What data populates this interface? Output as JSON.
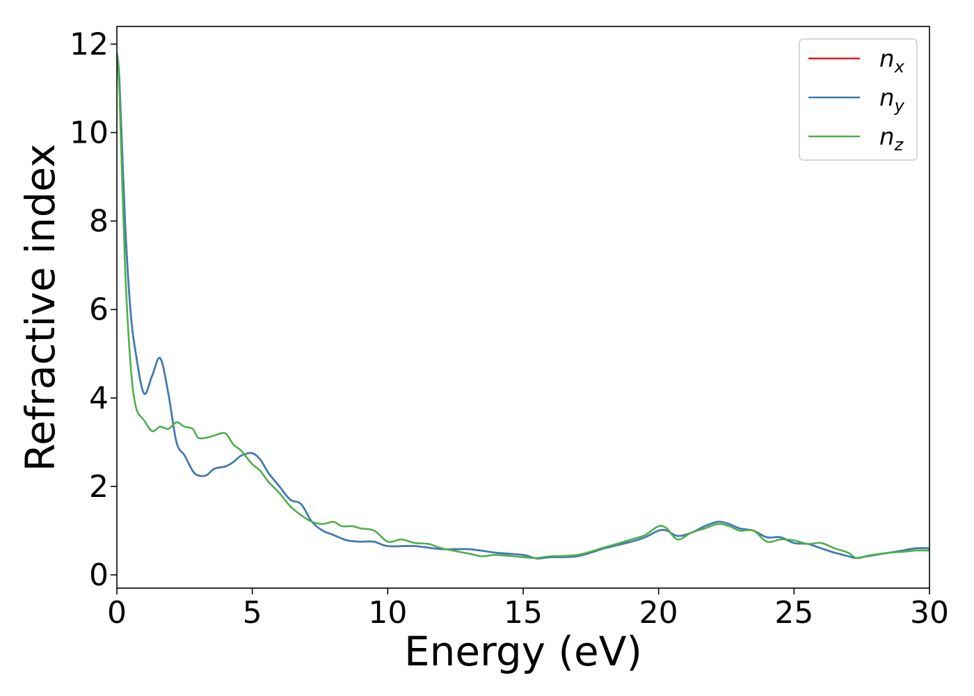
{
  "chart_data": {
    "type": "line",
    "title": "",
    "xlabel": "Energy (eV)",
    "ylabel": "Refractive index",
    "xlim": [
      0,
      30
    ],
    "ylim": [
      -0.3,
      12.4
    ],
    "xticks": [
      0,
      5,
      10,
      15,
      20,
      25,
      30
    ],
    "yticks": [
      0,
      2,
      4,
      6,
      8,
      10,
      12
    ],
    "xtick_labels": [
      "0",
      "5",
      "10",
      "15",
      "20",
      "25",
      "30"
    ],
    "ytick_labels": [
      "0",
      "2",
      "4",
      "6",
      "8",
      "10",
      "12"
    ],
    "grid": false,
    "legend_position": "top-right",
    "series": [
      {
        "name": "n",
        "subscript": "x",
        "color": "#e41a1c",
        "x": [
          0,
          0.1,
          0.3,
          0.5,
          0.7,
          1.0,
          1.3,
          1.6,
          1.9,
          2.2,
          2.5,
          2.8,
          3.0,
          3.3,
          3.6,
          4.0,
          4.3,
          4.6,
          5.0,
          5.3,
          5.6,
          6.0,
          6.4,
          6.8,
          7.2,
          7.6,
          8.0,
          8.5,
          9.0,
          9.5,
          10.0,
          11.0,
          12.0,
          13.0,
          14.0,
          15.0,
          15.5,
          16.0,
          17.0,
          18.0,
          19.0,
          19.5,
          20.0,
          20.3,
          20.7,
          21.2,
          21.7,
          22.2,
          22.6,
          23.0,
          23.5,
          24.0,
          24.5,
          25.0,
          25.5,
          26.0,
          26.5,
          27.0,
          27.3,
          27.7,
          28.0,
          28.5,
          29.0,
          29.5,
          30.0
        ],
        "y": [
          11.8,
          11.1,
          8.0,
          6.0,
          5.0,
          4.1,
          4.5,
          4.9,
          4.1,
          3.0,
          2.7,
          2.35,
          2.25,
          2.25,
          2.4,
          2.45,
          2.55,
          2.7,
          2.75,
          2.6,
          2.3,
          2.0,
          1.7,
          1.6,
          1.2,
          1.0,
          0.9,
          0.78,
          0.75,
          0.75,
          0.65,
          0.65,
          0.58,
          0.58,
          0.5,
          0.45,
          0.37,
          0.4,
          0.42,
          0.6,
          0.75,
          0.85,
          1.0,
          1.0,
          0.88,
          0.95,
          1.1,
          1.2,
          1.15,
          1.05,
          1.0,
          0.85,
          0.85,
          0.72,
          0.7,
          0.6,
          0.5,
          0.42,
          0.38,
          0.42,
          0.45,
          0.5,
          0.55,
          0.6,
          0.6
        ]
      },
      {
        "name": "n",
        "subscript": "y",
        "color": "#377eb8",
        "x": [
          0,
          0.1,
          0.3,
          0.5,
          0.7,
          1.0,
          1.3,
          1.6,
          1.9,
          2.2,
          2.5,
          2.8,
          3.0,
          3.3,
          3.6,
          4.0,
          4.3,
          4.6,
          5.0,
          5.3,
          5.6,
          6.0,
          6.4,
          6.8,
          7.2,
          7.6,
          8.0,
          8.5,
          9.0,
          9.5,
          10.0,
          11.0,
          12.0,
          13.0,
          14.0,
          15.0,
          15.5,
          16.0,
          17.0,
          18.0,
          19.0,
          19.5,
          20.0,
          20.3,
          20.7,
          21.2,
          21.7,
          22.2,
          22.6,
          23.0,
          23.5,
          24.0,
          24.5,
          25.0,
          25.5,
          26.0,
          26.5,
          27.0,
          27.3,
          27.7,
          28.0,
          28.5,
          29.0,
          29.5,
          30.0
        ],
        "y": [
          11.8,
          11.1,
          8.0,
          6.0,
          5.0,
          4.1,
          4.5,
          4.9,
          4.1,
          3.0,
          2.7,
          2.35,
          2.25,
          2.25,
          2.4,
          2.45,
          2.55,
          2.7,
          2.75,
          2.6,
          2.3,
          2.0,
          1.7,
          1.6,
          1.2,
          1.0,
          0.9,
          0.78,
          0.75,
          0.75,
          0.65,
          0.65,
          0.58,
          0.58,
          0.5,
          0.45,
          0.37,
          0.4,
          0.42,
          0.6,
          0.75,
          0.85,
          1.0,
          1.0,
          0.88,
          0.95,
          1.1,
          1.2,
          1.15,
          1.05,
          1.0,
          0.85,
          0.85,
          0.72,
          0.7,
          0.6,
          0.5,
          0.42,
          0.38,
          0.42,
          0.45,
          0.5,
          0.55,
          0.6,
          0.6
        ]
      },
      {
        "name": "n",
        "subscript": "z",
        "color": "#4daf4a",
        "x": [
          0,
          0.1,
          0.3,
          0.5,
          0.7,
          1.0,
          1.3,
          1.6,
          1.9,
          2.2,
          2.5,
          2.8,
          3.0,
          3.3,
          3.6,
          4.0,
          4.3,
          4.6,
          5.0,
          5.3,
          5.6,
          6.0,
          6.4,
          6.8,
          7.2,
          7.6,
          8.0,
          8.3,
          8.7,
          9.0,
          9.5,
          10.0,
          10.5,
          11.0,
          11.5,
          12.0,
          13.0,
          13.5,
          14.0,
          15.0,
          15.5,
          16.0,
          17.0,
          18.0,
          19.0,
          19.5,
          20.0,
          20.3,
          20.7,
          21.2,
          21.7,
          22.2,
          22.6,
          23.0,
          23.5,
          24.0,
          24.5,
          25.0,
          25.5,
          26.0,
          26.5,
          27.0,
          27.3,
          27.7,
          28.0,
          28.5,
          29.0,
          29.5,
          30.0
        ],
        "y": [
          11.8,
          10.8,
          7.0,
          4.8,
          3.8,
          3.5,
          3.25,
          3.35,
          3.3,
          3.45,
          3.35,
          3.3,
          3.1,
          3.1,
          3.15,
          3.2,
          2.95,
          2.8,
          2.5,
          2.35,
          2.1,
          1.85,
          1.55,
          1.35,
          1.2,
          1.15,
          1.2,
          1.1,
          1.1,
          1.05,
          1.0,
          0.75,
          0.8,
          0.72,
          0.7,
          0.6,
          0.48,
          0.42,
          0.45,
          0.4,
          0.38,
          0.42,
          0.45,
          0.62,
          0.8,
          0.9,
          1.1,
          1.05,
          0.8,
          0.95,
          1.05,
          1.15,
          1.1,
          1.0,
          1.0,
          0.75,
          0.8,
          0.78,
          0.7,
          0.72,
          0.6,
          0.5,
          0.38,
          0.43,
          0.46,
          0.5,
          0.52,
          0.55,
          0.55
        ]
      }
    ]
  }
}
